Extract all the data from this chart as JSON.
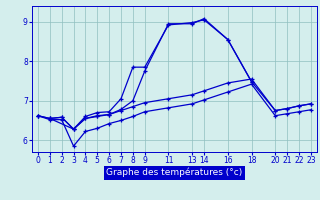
{
  "xlabel": "Graphe des températures (°c)",
  "background_color": "#d4eeed",
  "line_color": "#0000cc",
  "ylim": [
    5.7,
    9.4
  ],
  "xlim": [
    -0.5,
    23.5
  ],
  "yticks": [
    6,
    7,
    8,
    9
  ],
  "xticks": [
    0,
    1,
    2,
    3,
    4,
    5,
    6,
    7,
    8,
    9,
    11,
    13,
    14,
    16,
    18,
    20,
    21,
    22,
    23
  ],
  "line1_x": [
    0,
    1,
    2,
    3,
    4,
    5,
    6,
    7,
    8,
    9,
    11,
    13,
    14,
    16,
    18,
    20,
    21,
    22,
    23
  ],
  "line1_y": [
    6.62,
    6.55,
    6.58,
    6.28,
    6.55,
    6.6,
    6.65,
    6.75,
    6.85,
    6.95,
    7.05,
    7.15,
    7.25,
    7.45,
    7.55,
    6.75,
    6.8,
    6.87,
    6.92
  ],
  "line2_x": [
    0,
    1,
    2,
    3,
    4,
    5,
    6,
    7,
    8,
    9,
    11,
    13,
    14,
    16,
    18,
    20,
    21,
    22,
    23
  ],
  "line2_y": [
    6.62,
    6.52,
    6.52,
    5.85,
    6.22,
    6.3,
    6.42,
    6.5,
    6.6,
    6.72,
    6.82,
    6.92,
    7.02,
    7.22,
    7.42,
    6.62,
    6.67,
    6.72,
    6.77
  ],
  "line3_x": [
    1,
    2,
    3,
    4,
    5,
    6,
    7,
    8,
    9,
    11,
    13,
    14,
    16,
    18
  ],
  "line3_y": [
    6.55,
    6.58,
    6.28,
    6.6,
    6.7,
    6.72,
    7.05,
    7.85,
    7.85,
    8.92,
    8.98,
    9.05,
    8.55,
    7.48
  ],
  "line4_x": [
    0,
    1,
    3,
    4,
    5,
    6,
    7,
    8,
    9,
    11,
    13,
    14,
    16,
    18,
    20,
    21,
    22,
    23
  ],
  "line4_y": [
    6.62,
    6.55,
    6.28,
    6.55,
    6.62,
    6.65,
    6.78,
    7.0,
    7.75,
    8.95,
    8.95,
    9.08,
    8.55,
    7.48,
    6.75,
    6.8,
    6.87,
    6.92
  ]
}
